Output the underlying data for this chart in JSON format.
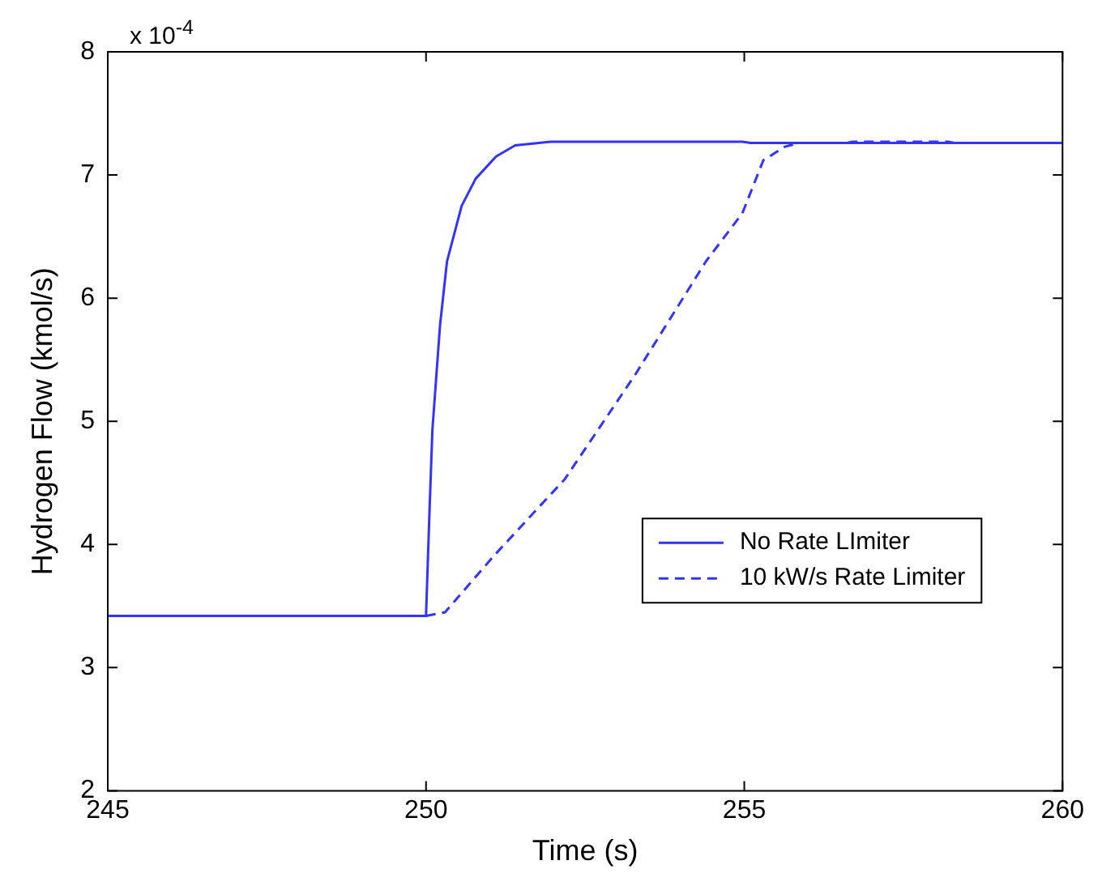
{
  "chart_data": {
    "type": "line",
    "xlabel": "Time (s)",
    "ylabel": "Hydrogen Flow (kmol/s)",
    "annotations": [
      "x 10$^{-4}$"
    ],
    "xlim": [
      245,
      260
    ],
    "xticks": [
      245,
      250,
      255,
      260
    ],
    "ylim": [
      2,
      8
    ],
    "yticks": [
      2,
      3,
      4,
      5,
      6,
      7,
      8
    ],
    "grid": false,
    "legend": "right",
    "marker": "none",
    "series": [
      {
        "name": "No Rate LImiter",
        "color": "#3333ff",
        "line_style": "solid",
        "x": [
          245,
          250,
          250.05,
          250.1,
          250.22,
          250.33,
          250.56,
          250.78,
          251.1,
          251.4,
          251.96,
          254.97,
          255.1,
          260
        ],
        "values": [
          3.42,
          3.42,
          4.2,
          4.93,
          5.78,
          6.3,
          6.75,
          6.97,
          7.15,
          7.24,
          7.27,
          7.27,
          7.26,
          7.26
        ]
      },
      {
        "name": "10 kW/s Rate Limiter",
        "color": "#3333ff",
        "line_style": "dashed",
        "x": [
          250,
          250.3,
          251.07,
          252.18,
          253.3,
          254.4,
          254.97,
          255.3,
          255.64,
          255.86,
          256.6,
          256.7,
          258.2,
          258.3,
          260
        ],
        "values": [
          3.42,
          3.45,
          3.91,
          4.53,
          5.39,
          6.3,
          6.69,
          7.12,
          7.23,
          7.26,
          7.26,
          7.27,
          7.27,
          7.26,
          7.26
        ]
      }
    ]
  }
}
